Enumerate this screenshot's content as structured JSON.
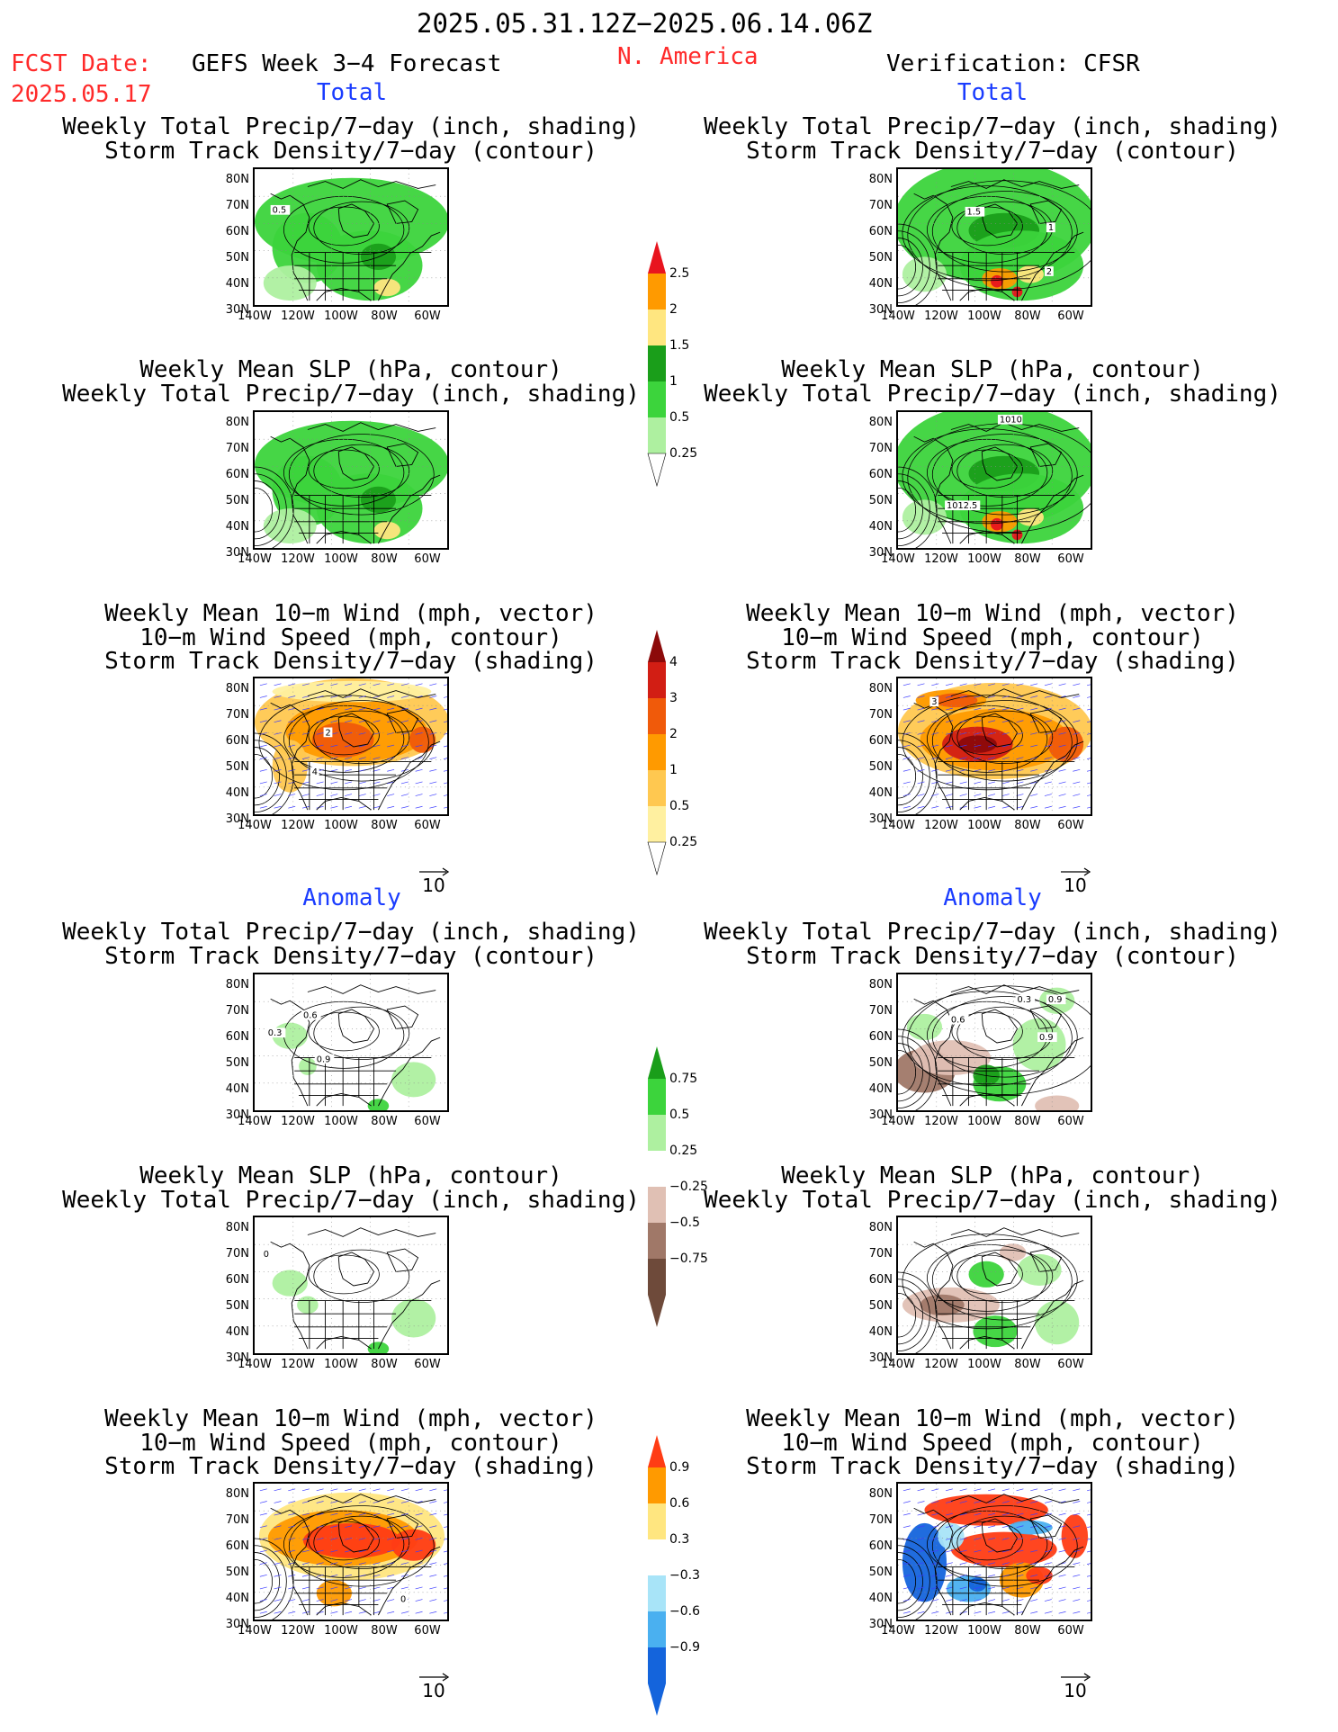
{
  "header": {
    "date_range": "2025.05.31.12Z−2025.06.14.06Z",
    "fcst_label": "FCST Date:",
    "fcst_date": "2025.05.17",
    "model": "GEFS Week 3−4 Forecast",
    "region": "N. America",
    "verification": "Verification: CFSR"
  },
  "sections": {
    "total_left": "Total",
    "total_right": "Total",
    "anomaly_left": "Anomaly",
    "anomaly_right": "Anomaly"
  },
  "panels": {
    "r1": {
      "line1": "Weekly Total Precip/7−day (inch, shading)",
      "line2": "Storm Track Density/7−day (contour)"
    },
    "r2": {
      "line1": "Weekly Mean SLP (hPa, contour)",
      "line2": "Weekly Total Precip/7−day (inch, shading)"
    },
    "r3": {
      "line1": "Weekly Mean 10−m Wind (mph, vector)",
      "line2": "10−m Wind Speed (mph, contour)",
      "line3": "Storm Track Density/7−day (shading)"
    }
  },
  "axes": {
    "lat": [
      "80N",
      "70N",
      "60N",
      "50N",
      "40N",
      "30N"
    ],
    "lon": [
      "140W",
      "120W",
      "100W",
      "80W",
      "60W"
    ]
  },
  "vector_ref": "10",
  "map_labels": {
    "t1l": [
      "0.5"
    ],
    "t1r": [
      "1.5",
      "1",
      "2"
    ],
    "t2r": [
      "1010",
      "1012.5"
    ],
    "t3l": [
      "2",
      "4"
    ],
    "t3r": [
      "3"
    ],
    "a1l": [
      "0.3",
      "0.6",
      "0.9"
    ],
    "a1r": [
      "0.3",
      "0.9",
      "0.6",
      "0.9"
    ],
    "a2l": [
      "0"
    ],
    "a3l": [
      "0"
    ]
  },
  "colorbars": {
    "precip_total": {
      "labels": [
        "2.5",
        "2",
        "1.5",
        "1",
        "0.5",
        "0.25"
      ],
      "colors": [
        "#e8141e",
        "#ff9a00",
        "#ffe680",
        "#1a9e1a",
        "#3cd43c",
        "#aef0a0"
      ]
    },
    "storm_total": {
      "labels": [
        "4",
        "3",
        "2",
        "1",
        "0.5",
        "0.25"
      ],
      "colors": [
        "#8c0a0a",
        "#d21e14",
        "#f05a0a",
        "#ff9a00",
        "#ffc850",
        "#fff0a0"
      ]
    },
    "precip_anom": {
      "labels": [
        "0.75",
        "0.5",
        "0.25",
        "−0.25",
        "−0.5",
        "−0.75"
      ],
      "colors": [
        "#1a9e1a",
        "#3cd43c",
        "#aef0a0",
        "#ffffff",
        "#e0c0b4",
        "#a07868",
        "#6e4a3a"
      ]
    },
    "storm_anom": {
      "labels": [
        "0.9",
        "0.6",
        "0.3",
        "−0.3",
        "−0.6",
        "−0.9"
      ],
      "colors": [
        "#ff3c14",
        "#ff9a00",
        "#ffe680",
        "#ffffff",
        "#a8e4f8",
        "#4ab0f0",
        "#1464dc"
      ]
    }
  },
  "colors": {
    "header_red": "#ff2a2a",
    "section_blue": "#1a3cff"
  }
}
